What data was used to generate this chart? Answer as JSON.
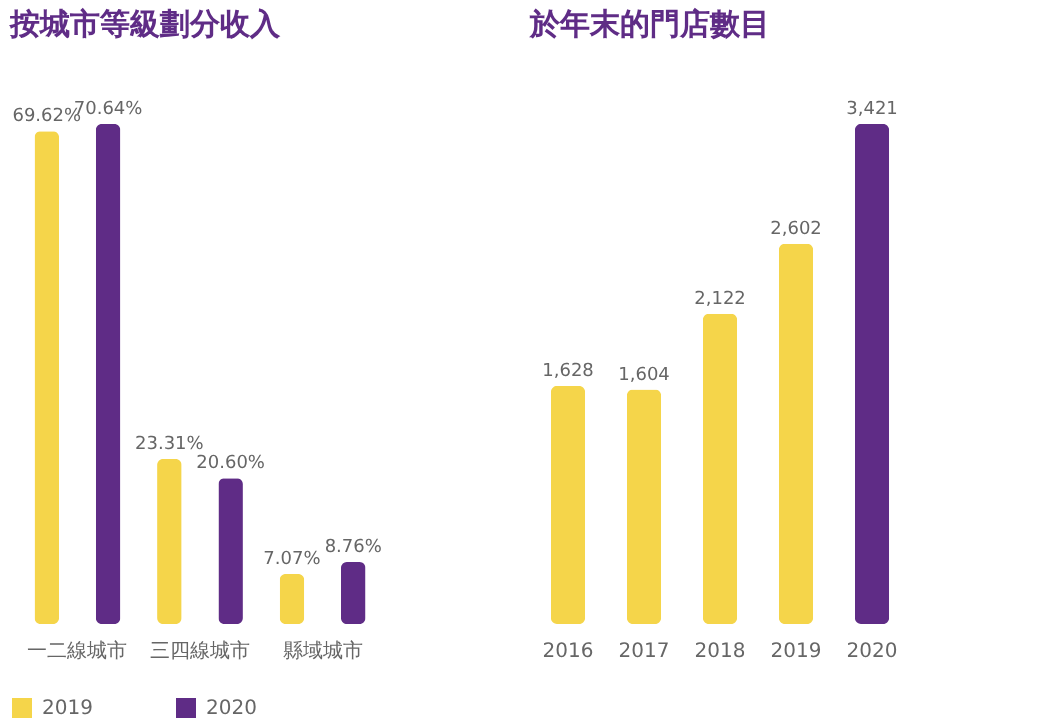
{
  "chart_data": [
    {
      "type": "bar",
      "title": "按城市等級劃分收入",
      "categories": [
        "一二線城市",
        "三四線城市",
        "縣域城市"
      ],
      "legend": "bottom",
      "series": [
        {
          "name": "2019",
          "color": "#f5d54a",
          "values": [
            69.62,
            23.31,
            7.07
          ],
          "value_labels": [
            "69.62%",
            "23.31%",
            "7.07%"
          ]
        },
        {
          "name": "2020",
          "color": "#5f2c86",
          "values": [
            70.64,
            20.6,
            8.76
          ],
          "value_labels": [
            "70.64%",
            "20.60%",
            "8.76%"
          ]
        }
      ]
    },
    {
      "type": "bar",
      "title": "於年末的門店數目",
      "categories": [
        "2016",
        "2017",
        "2018",
        "2019",
        "2020"
      ],
      "values": [
        1628,
        1604,
        2122,
        2602,
        3421
      ],
      "value_labels": [
        "1,628",
        "1,604",
        "2,122",
        "2,602",
        "3,421"
      ],
      "colors": [
        "#f5d54a",
        "#f5d54a",
        "#f5d54a",
        "#f5d54a",
        "#5f2c86"
      ]
    }
  ]
}
